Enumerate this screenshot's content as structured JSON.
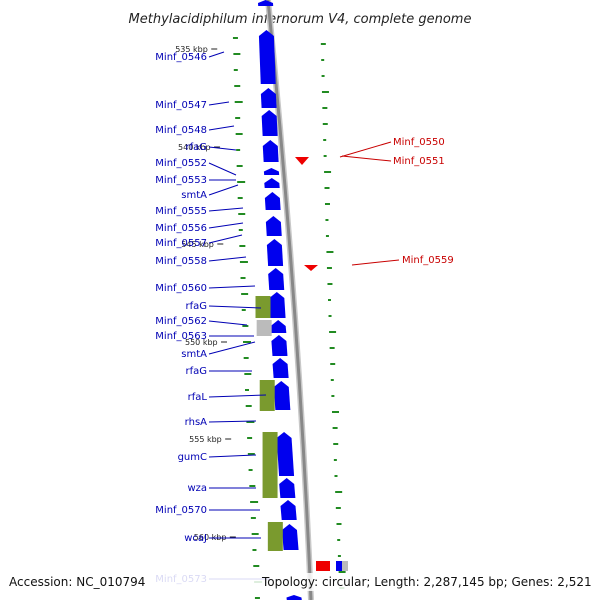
{
  "title": "Methylacidiphilum infernorum V4, complete genome",
  "footer": {
    "accession": "Accession: NC_010794",
    "topology": "Topology: circular; Length: 2,287,145 bp; Genes: 2,521"
  },
  "colors": {
    "forward_cds": "#0000ee",
    "rna_feature": "#7a9a2e",
    "pseudo_feature": "#bbbbbb",
    "reverse_feature": "#ee0000",
    "backbone": "#888888",
    "gc_ticks": "#228b22",
    "left_label": "#0000b4",
    "right_label": "#c80000"
  },
  "scale": {
    "unit": "kbp",
    "ticks": [
      "535 kbp",
      "540 kbp",
      "545 kbp",
      "550 kbp",
      "555 kbp",
      "560 kbp"
    ]
  },
  "left_labels": [
    "Minf_0546",
    "Minf_0547",
    "Minf_0548",
    "rfaG",
    "Minf_0552",
    "Minf_0553",
    "smtA",
    "Minf_0555",
    "Minf_0556",
    "Minf_0557",
    "Minf_0558",
    "Minf_0560",
    "rfaG",
    "Minf_0562",
    "Minf_0563",
    "smtA",
    "rfaG",
    "rfaL",
    "rhsA",
    "gumC",
    "wza",
    "Minf_0570",
    "wcaJ",
    "Minf_0573"
  ],
  "right_labels": [
    "Minf_0550",
    "Minf_0551",
    "Minf_0559"
  ]
}
